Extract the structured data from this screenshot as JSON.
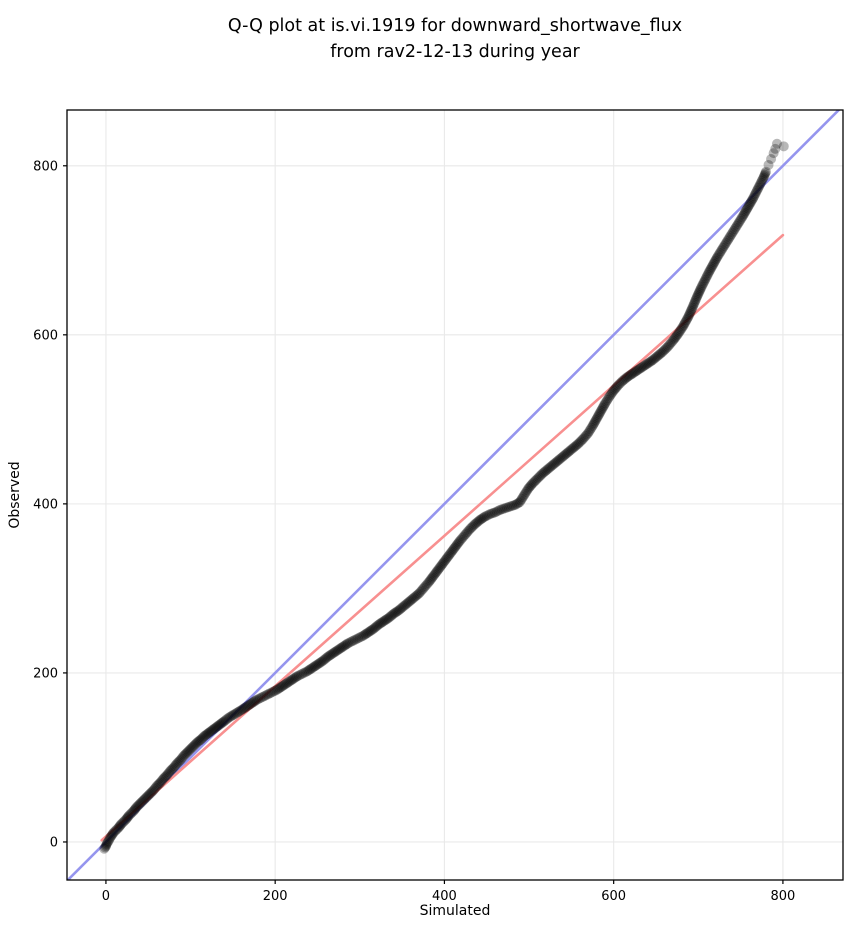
{
  "title": {
    "line1": "Q-Q plot at is.vi.1919 for downward_shortwave_flux",
    "line2": "from rav2-12-13 during year"
  },
  "chart_data": {
    "type": "scatter",
    "title": "Q-Q plot at is.vi.1919 for downward_shortwave_flux from rav2-12-13 during year",
    "xlabel": "Simulated",
    "ylabel": "Observed",
    "xlim": [
      -46,
      871
    ],
    "ylim": [
      -45,
      866
    ],
    "x_ticks": [
      0,
      200,
      400,
      600,
      800
    ],
    "y_ticks": [
      0,
      200,
      400,
      600,
      800
    ],
    "grid": true,
    "legend": "none",
    "reference_lines": [
      {
        "name": "identity (y = x)",
        "x1": -46,
        "y1": -46,
        "x2": 866,
        "y2": 866,
        "color": "#9595ee"
      },
      {
        "name": "fit line",
        "x1": -5,
        "y1": 2,
        "x2": 800,
        "y2": 718,
        "color": "#f89090"
      }
    ],
    "series": [
      {
        "name": "observed vs simulated quantiles",
        "marker": "circle",
        "color": "rgba(0,0,0,0.28)",
        "points": [
          [
            -2,
            -8
          ],
          [
            0,
            -5
          ],
          [
            1,
            -2
          ],
          [
            3,
            1
          ],
          [
            5,
            5
          ],
          [
            7,
            8
          ],
          [
            9,
            11
          ],
          [
            12,
            14
          ],
          [
            15,
            17
          ],
          [
            18,
            21
          ],
          [
            21,
            24
          ],
          [
            24,
            27
          ],
          [
            27,
            31
          ],
          [
            30,
            34
          ],
          [
            33,
            37
          ],
          [
            36,
            41
          ],
          [
            40,
            45
          ],
          [
            44,
            49
          ],
          [
            48,
            53
          ],
          [
            52,
            57
          ],
          [
            56,
            61
          ],
          [
            60,
            66
          ],
          [
            64,
            70
          ],
          [
            68,
            75
          ],
          [
            72,
            79
          ],
          [
            76,
            84
          ],
          [
            80,
            88
          ],
          [
            84,
            93
          ],
          [
            88,
            97
          ],
          [
            92,
            102
          ],
          [
            96,
            106
          ],
          [
            100,
            110
          ],
          [
            104,
            114
          ],
          [
            108,
            118
          ],
          [
            112,
            121
          ],
          [
            116,
            125
          ],
          [
            120,
            128
          ],
          [
            124,
            131
          ],
          [
            128,
            134
          ],
          [
            132,
            137
          ],
          [
            136,
            140
          ],
          [
            140,
            143
          ],
          [
            145,
            147
          ],
          [
            150,
            150
          ],
          [
            155,
            153
          ],
          [
            160,
            156
          ],
          [
            166,
            160
          ],
          [
            172,
            164
          ],
          [
            178,
            168
          ],
          [
            184,
            171
          ],
          [
            190,
            174
          ],
          [
            196,
            177
          ],
          [
            202,
            180
          ],
          [
            208,
            184
          ],
          [
            214,
            188
          ],
          [
            220,
            192
          ],
          [
            226,
            196
          ],
          [
            232,
            199
          ],
          [
            238,
            202
          ],
          [
            244,
            206
          ],
          [
            250,
            210
          ],
          [
            256,
            214
          ],
          [
            262,
            219
          ],
          [
            268,
            223
          ],
          [
            274,
            227
          ],
          [
            280,
            231
          ],
          [
            286,
            235
          ],
          [
            292,
            238
          ],
          [
            298,
            241
          ],
          [
            304,
            244
          ],
          [
            310,
            248
          ],
          [
            316,
            252
          ],
          [
            322,
            257
          ],
          [
            328,
            261
          ],
          [
            334,
            265
          ],
          [
            340,
            270
          ],
          [
            346,
            274
          ],
          [
            352,
            279
          ],
          [
            358,
            284
          ],
          [
            364,
            289
          ],
          [
            370,
            294
          ],
          [
            376,
            301
          ],
          [
            382,
            308
          ],
          [
            388,
            316
          ],
          [
            394,
            324
          ],
          [
            400,
            332
          ],
          [
            406,
            340
          ],
          [
            412,
            348
          ],
          [
            418,
            356
          ],
          [
            424,
            363
          ],
          [
            430,
            370
          ],
          [
            436,
            376
          ],
          [
            442,
            381
          ],
          [
            448,
            385
          ],
          [
            454,
            388
          ],
          [
            460,
            390
          ],
          [
            466,
            393
          ],
          [
            472,
            395
          ],
          [
            478,
            397
          ],
          [
            484,
            399
          ],
          [
            489,
            402
          ],
          [
            494,
            410
          ],
          [
            499,
            418
          ],
          [
            504,
            424
          ],
          [
            510,
            430
          ],
          [
            516,
            436
          ],
          [
            522,
            441
          ],
          [
            528,
            446
          ],
          [
            534,
            451
          ],
          [
            540,
            456
          ],
          [
            546,
            461
          ],
          [
            552,
            466
          ],
          [
            558,
            471
          ],
          [
            564,
            477
          ],
          [
            570,
            484
          ],
          [
            575,
            492
          ],
          [
            580,
            501
          ],
          [
            585,
            510
          ],
          [
            590,
            519
          ],
          [
            595,
            527
          ],
          [
            600,
            534
          ],
          [
            605,
            540
          ],
          [
            610,
            545
          ],
          [
            616,
            550
          ],
          [
            622,
            554
          ],
          [
            628,
            558
          ],
          [
            634,
            562
          ],
          [
            640,
            566
          ],
          [
            646,
            570
          ],
          [
            652,
            575
          ],
          [
            658,
            580
          ],
          [
            664,
            586
          ],
          [
            670,
            593
          ],
          [
            676,
            601
          ],
          [
            682,
            610
          ],
          [
            688,
            621
          ],
          [
            693,
            632
          ],
          [
            698,
            644
          ],
          [
            703,
            655
          ],
          [
            708,
            665
          ],
          [
            713,
            675
          ],
          [
            718,
            684
          ],
          [
            723,
            693
          ],
          [
            728,
            701
          ],
          [
            733,
            709
          ],
          [
            738,
            717
          ],
          [
            743,
            725
          ],
          [
            748,
            733
          ],
          [
            753,
            741
          ],
          [
            757,
            748
          ],
          [
            761,
            755
          ],
          [
            765,
            762
          ],
          [
            768,
            768
          ],
          [
            771,
            774
          ],
          [
            774,
            780
          ],
          [
            777,
            786
          ],
          [
            780,
            793
          ],
          [
            783,
            801
          ],
          [
            786,
            808
          ],
          [
            789,
            815
          ],
          [
            791,
            820
          ],
          [
            793,
            826
          ],
          [
            801,
            823
          ]
        ]
      }
    ]
  },
  "colors": {
    "identity_line": "#9595ee",
    "fit_line": "#f89090",
    "points": "rgba(0,0,0,0.28)",
    "grid": "#e9e9e9",
    "frame": "#000000",
    "background": "#ffffff"
  }
}
